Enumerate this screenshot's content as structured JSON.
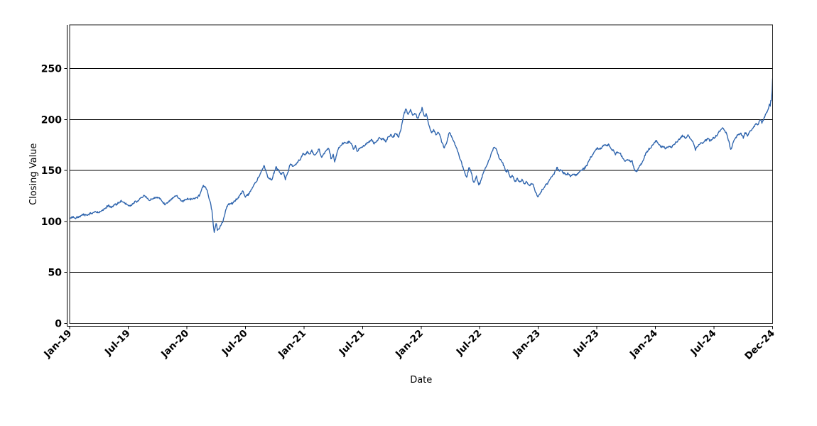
{
  "chart_data": {
    "type": "line",
    "title": "",
    "xlabel": "Date",
    "ylabel": "Closing Value",
    "legend": "none",
    "grid": "horizontal-only",
    "background_color": "#ffffff",
    "grid_color": "#000000",
    "axis_color": "#000000",
    "x_axis": {
      "unit": "months since Jan-2019",
      "range": [
        0,
        72
      ],
      "ticks": [
        {
          "pos": 0,
          "label": "Jan-19"
        },
        {
          "pos": 6,
          "label": "Jul-19"
        },
        {
          "pos": 12,
          "label": "Jan-20"
        },
        {
          "pos": 18,
          "label": "Jul-20"
        },
        {
          "pos": 24,
          "label": "Jan-21"
        },
        {
          "pos": 30,
          "label": "Jul-21"
        },
        {
          "pos": 36,
          "label": "Jan-22"
        },
        {
          "pos": 42,
          "label": "Jul-22"
        },
        {
          "pos": 48,
          "label": "Jan-23"
        },
        {
          "pos": 54,
          "label": "Jul-23"
        },
        {
          "pos": 60,
          "label": "Jan-24"
        },
        {
          "pos": 66,
          "label": "Jul-24"
        },
        {
          "pos": 72,
          "label": "Dec-24"
        }
      ]
    },
    "y_axis": {
      "range": [
        0,
        292.8
      ],
      "ticks": [
        0,
        50,
        100,
        150,
        200,
        250
      ],
      "gridlines": [
        50,
        100,
        150,
        200,
        250
      ]
    },
    "series": [
      {
        "name": "Closing Value",
        "color": "#2e64ad",
        "line_width": 1.35,
        "keypoints": [
          [
            0,
            103
          ],
          [
            0.3,
            104.5
          ],
          [
            0.6,
            103.8
          ],
          [
            1,
            106
          ],
          [
            1.4,
            107.5
          ],
          [
            1.8,
            107
          ],
          [
            2.2,
            109
          ],
          [
            2.6,
            110.5
          ],
          [
            3,
            110
          ],
          [
            3.3,
            111.5
          ],
          [
            3.6,
            113
          ],
          [
            4,
            115.5
          ],
          [
            4.3,
            113.5
          ],
          [
            4.6,
            116
          ],
          [
            5,
            118.5
          ],
          [
            5.3,
            120.2
          ],
          [
            5.6,
            118.5
          ],
          [
            5.9,
            116.5
          ],
          [
            6.2,
            114.4
          ],
          [
            6.5,
            116.5
          ],
          [
            6.8,
            118.5
          ],
          [
            7.1,
            120.5
          ],
          [
            7.4,
            122.5
          ],
          [
            7.7,
            123.7
          ],
          [
            7.95,
            121
          ],
          [
            8.2,
            118.9
          ],
          [
            8.5,
            120.5
          ],
          [
            8.8,
            122
          ],
          [
            9.1,
            123
          ],
          [
            9.4,
            119.5
          ],
          [
            9.7,
            115.4
          ],
          [
            10,
            117.5
          ],
          [
            10.3,
            119.5
          ],
          [
            10.6,
            121.3
          ],
          [
            10.95,
            123.7
          ],
          [
            11.25,
            120.5
          ],
          [
            11.55,
            117.8
          ],
          [
            11.85,
            119.5
          ],
          [
            12.15,
            120.1
          ],
          [
            12.5,
            120.8
          ],
          [
            12.8,
            121
          ],
          [
            13.1,
            121.3
          ],
          [
            13.4,
            126
          ],
          [
            13.65,
            133
          ],
          [
            13.9,
            131.8
          ],
          [
            14.1,
            128
          ],
          [
            14.45,
            115.4
          ],
          [
            14.6,
            108
          ],
          [
            14.72,
            95
          ],
          [
            14.8,
            88.3
          ],
          [
            15,
            96.5
          ],
          [
            15.15,
            90.6
          ],
          [
            15.3,
            92
          ],
          [
            15.5,
            97
          ],
          [
            15.7,
            100
          ],
          [
            15.9,
            108
          ],
          [
            16.1,
            115.6
          ],
          [
            16.4,
            118
          ],
          [
            16.7,
            119.5
          ],
          [
            17,
            121.4
          ],
          [
            17.4,
            126
          ],
          [
            17.75,
            131.9
          ],
          [
            18,
            124.9
          ],
          [
            18.3,
            128
          ],
          [
            18.6,
            133
          ],
          [
            18.85,
            136.6
          ],
          [
            19.2,
            141
          ],
          [
            19.5,
            147
          ],
          [
            19.9,
            155.4
          ],
          [
            20.15,
            149
          ],
          [
            20.3,
            145
          ],
          [
            20.5,
            143.5
          ],
          [
            20.7,
            142.4
          ],
          [
            20.9,
            148
          ],
          [
            21.15,
            155.2
          ],
          [
            21.4,
            152
          ],
          [
            21.7,
            148.4
          ],
          [
            21.9,
            151
          ],
          [
            22.1,
            143.5
          ],
          [
            22.35,
            150
          ],
          [
            22.6,
            158.7
          ],
          [
            22.85,
            156
          ],
          [
            23.1,
            157.6
          ],
          [
            23.4,
            161
          ],
          [
            23.65,
            163
          ],
          [
            23.9,
            169.2
          ],
          [
            24.1,
            166.8
          ],
          [
            24.35,
            170.3
          ],
          [
            24.6,
            168
          ],
          [
            24.8,
            171.5
          ],
          [
            25.05,
            166.8
          ],
          [
            25.3,
            169
          ],
          [
            25.55,
            172.7
          ],
          [
            25.8,
            164.5
          ],
          [
            26.05,
            168
          ],
          [
            26.3,
            171.5
          ],
          [
            26.55,
            173.8
          ],
          [
            26.8,
            162.2
          ],
          [
            27,
            166.8
          ],
          [
            27.15,
            158.7
          ],
          [
            27.4,
            169.2
          ],
          [
            27.6,
            173.8
          ],
          [
            27.9,
            177.3
          ],
          [
            28.15,
            179.7
          ],
          [
            28.4,
            178.5
          ],
          [
            28.65,
            180.8
          ],
          [
            28.9,
            177.3
          ],
          [
            29.1,
            172.7
          ],
          [
            29.3,
            175.9
          ],
          [
            29.45,
            170.3
          ],
          [
            29.7,
            173.8
          ],
          [
            30,
            175
          ],
          [
            30.3,
            177.3
          ],
          [
            30.6,
            179
          ],
          [
            30.9,
            182
          ],
          [
            31.2,
            178.5
          ],
          [
            31.45,
            180.8
          ],
          [
            31.7,
            184.3
          ],
          [
            31.95,
            182
          ],
          [
            32.15,
            183.1
          ],
          [
            32.4,
            179.7
          ],
          [
            32.65,
            185.5
          ],
          [
            32.9,
            186.7
          ],
          [
            33.1,
            184.3
          ],
          [
            33.4,
            187.8
          ],
          [
            33.7,
            185
          ],
          [
            33.95,
            192.5
          ],
          [
            34.2,
            206
          ],
          [
            34.45,
            212.2
          ],
          [
            34.65,
            205.3
          ],
          [
            34.9,
            210.5
          ],
          [
            35.15,
            205.2
          ],
          [
            35.4,
            207.6
          ],
          [
            35.65,
            201.8
          ],
          [
            35.9,
            207.6
          ],
          [
            36.1,
            212.2
          ],
          [
            36.35,
            202.9
          ],
          [
            36.55,
            206
          ],
          [
            36.8,
            195
          ],
          [
            37.05,
            188
          ],
          [
            37.3,
            191
          ],
          [
            37.55,
            186
          ],
          [
            37.8,
            190
          ],
          [
            38.05,
            182
          ],
          [
            38.35,
            174
          ],
          [
            38.6,
            179
          ],
          [
            38.9,
            190.1
          ],
          [
            39.15,
            184.3
          ],
          [
            39.45,
            178.5
          ],
          [
            39.7,
            172
          ],
          [
            39.95,
            165
          ],
          [
            40.2,
            157
          ],
          [
            40.45,
            150.5
          ],
          [
            40.65,
            144.7
          ],
          [
            40.9,
            155.2
          ],
          [
            41.15,
            149
          ],
          [
            41.4,
            138.9
          ],
          [
            41.65,
            145.9
          ],
          [
            41.9,
            137.5
          ],
          [
            42.15,
            142
          ],
          [
            42.4,
            150
          ],
          [
            42.7,
            157
          ],
          [
            43,
            163
          ],
          [
            43.25,
            170
          ],
          [
            43.5,
            175
          ],
          [
            43.75,
            171.5
          ],
          [
            43.95,
            164.5
          ],
          [
            44.2,
            161
          ],
          [
            44.45,
            157.6
          ],
          [
            44.7,
            150.5
          ],
          [
            44.9,
            151.7
          ],
          [
            45.1,
            144.7
          ],
          [
            45.35,
            147.1
          ],
          [
            45.6,
            141.2
          ],
          [
            45.85,
            143.5
          ],
          [
            46.1,
            140
          ],
          [
            46.35,
            142.4
          ],
          [
            46.6,
            137.7
          ],
          [
            46.8,
            140
          ],
          [
            47.05,
            136.5
          ],
          [
            47.3,
            138.9
          ],
          [
            47.55,
            135.4
          ],
          [
            47.7,
            129.5
          ],
          [
            47.95,
            126
          ],
          [
            48.2,
            128.3
          ],
          [
            48.45,
            133
          ],
          [
            48.65,
            135.4
          ],
          [
            48.9,
            137.7
          ],
          [
            49.15,
            141.2
          ],
          [
            49.4,
            144.7
          ],
          [
            49.65,
            148.2
          ],
          [
            49.8,
            151.7
          ],
          [
            49.95,
            154.1
          ],
          [
            50.15,
            150.6
          ],
          [
            50.35,
            152.9
          ],
          [
            50.55,
            149.4
          ],
          [
            50.8,
            147.1
          ],
          [
            51.05,
            148.2
          ],
          [
            51.3,
            144.7
          ],
          [
            51.55,
            147.1
          ],
          [
            51.8,
            145.5
          ],
          [
            52.05,
            148
          ],
          [
            52.3,
            150.5
          ],
          [
            52.55,
            152
          ],
          [
            52.8,
            154
          ],
          [
            53.05,
            157.6
          ],
          [
            53.3,
            163.3
          ],
          [
            53.55,
            167
          ],
          [
            53.8,
            171
          ],
          [
            54.05,
            173.8
          ],
          [
            54.3,
            172.6
          ],
          [
            54.55,
            175
          ],
          [
            54.8,
            177.3
          ],
          [
            55.05,
            176
          ],
          [
            55.2,
            177.5
          ],
          [
            55.45,
            173
          ],
          [
            55.7,
            171.5
          ],
          [
            55.9,
            166.8
          ],
          [
            56.1,
            170
          ],
          [
            56.4,
            168
          ],
          [
            56.7,
            163.3
          ],
          [
            56.9,
            161
          ],
          [
            57.15,
            162
          ],
          [
            57.4,
            159.9
          ],
          [
            57.6,
            161
          ],
          [
            57.8,
            152.8
          ],
          [
            58.05,
            149.4
          ],
          [
            58.25,
            154
          ],
          [
            58.5,
            156.4
          ],
          [
            58.75,
            161
          ],
          [
            59,
            166.8
          ],
          [
            59.3,
            171.5
          ],
          [
            59.6,
            174
          ],
          [
            59.85,
            177.3
          ],
          [
            60.1,
            179.7
          ],
          [
            60.35,
            176.2
          ],
          [
            60.6,
            173.8
          ],
          [
            60.85,
            175
          ],
          [
            61.1,
            172.7
          ],
          [
            61.35,
            174
          ],
          [
            61.6,
            173.3
          ],
          [
            61.85,
            176.2
          ],
          [
            62.1,
            178.5
          ],
          [
            62.35,
            180.8
          ],
          [
            62.6,
            183.5
          ],
          [
            62.85,
            185.5
          ],
          [
            63.1,
            182
          ],
          [
            63.35,
            186.7
          ],
          [
            63.6,
            183.1
          ],
          [
            63.85,
            179.7
          ],
          [
            64.1,
            171.5
          ],
          [
            64.35,
            176.2
          ],
          [
            64.6,
            177.3
          ],
          [
            64.85,
            178.5
          ],
          [
            65.1,
            179.7
          ],
          [
            65.35,
            182
          ],
          [
            65.6,
            180.8
          ],
          [
            65.85,
            183.1
          ],
          [
            66.1,
            184
          ],
          [
            66.35,
            186.7
          ],
          [
            66.6,
            190.1
          ],
          [
            66.85,
            193.6
          ],
          [
            67.05,
            191
          ],
          [
            67.25,
            189
          ],
          [
            67.45,
            183.1
          ],
          [
            67.6,
            176.2
          ],
          [
            67.75,
            171.5
          ],
          [
            67.95,
            178.5
          ],
          [
            68.15,
            183.1
          ],
          [
            68.4,
            186
          ],
          [
            68.6,
            188
          ],
          [
            68.8,
            187.8
          ],
          [
            69,
            184.3
          ],
          [
            69.2,
            189
          ],
          [
            69.45,
            185.5
          ],
          [
            69.65,
            190.1
          ],
          [
            69.9,
            192.5
          ],
          [
            70.1,
            194.8
          ],
          [
            70.3,
            198.3
          ],
          [
            70.45,
            196
          ],
          [
            70.6,
            199.5
          ],
          [
            70.75,
            202.9
          ],
          [
            70.9,
            198.3
          ],
          [
            71.05,
            200.7
          ],
          [
            71.2,
            205.3
          ],
          [
            71.35,
            207.6
          ],
          [
            71.5,
            211.1
          ],
          [
            71.6,
            213.4
          ],
          [
            71.7,
            218.1
          ],
          [
            71.75,
            213.4
          ],
          [
            71.82,
            221.6
          ],
          [
            71.87,
            218.8
          ],
          [
            71.92,
            226.2
          ],
          [
            71.96,
            230
          ],
          [
            72,
            240
          ]
        ]
      }
    ],
    "noise": {
      "seed": 1337,
      "amplitude": 1.25,
      "walk": 0.5,
      "walk_max": 2.0,
      "points_per_month": 21
    }
  }
}
